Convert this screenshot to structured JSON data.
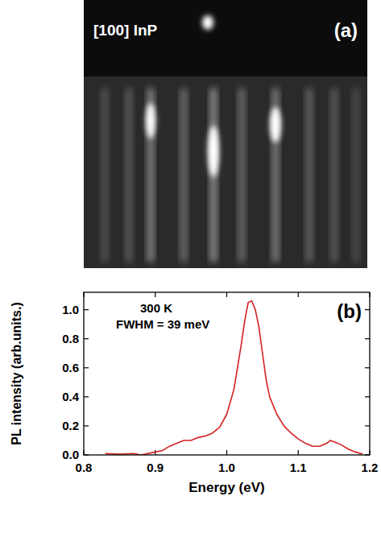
{
  "image_panel": {
    "label": "[100] InP",
    "panel_label": "(a)"
  },
  "chart_data": {
    "type": "line",
    "panel_label": "(b)",
    "annotations": [
      "300 K",
      "FWHM = 39 meV"
    ],
    "x_label": "Energy (eV)",
    "y_label": "PL intensity (arb.units.)",
    "x": [
      0.83,
      0.85,
      0.87,
      0.88,
      0.9,
      0.91,
      0.92,
      0.93,
      0.94,
      0.95,
      0.96,
      0.97,
      0.98,
      0.99,
      1.0,
      1.01,
      1.02,
      1.025,
      1.03,
      1.035,
      1.04,
      1.045,
      1.05,
      1.055,
      1.06,
      1.07,
      1.08,
      1.09,
      1.1,
      1.11,
      1.12,
      1.13,
      1.14,
      1.145,
      1.15,
      1.16,
      1.17,
      1.18,
      1.19
    ],
    "values": [
      0.01,
      0.005,
      0.01,
      0.0,
      0.02,
      0.03,
      0.06,
      0.08,
      0.1,
      0.1,
      0.12,
      0.13,
      0.15,
      0.19,
      0.28,
      0.45,
      0.75,
      0.92,
      1.05,
      1.06,
      1.0,
      0.88,
      0.7,
      0.52,
      0.4,
      0.28,
      0.2,
      0.15,
      0.11,
      0.08,
      0.06,
      0.06,
      0.08,
      0.1,
      0.09,
      0.07,
      0.04,
      0.02,
      0.005
    ],
    "color": "#d42020",
    "xlim": [
      0.8,
      1.2
    ],
    "xticks": [
      0.8,
      0.9,
      {
        "value": 1,
        "label": "1.0"
      },
      1.1,
      1.2
    ],
    "ylim": [
      0,
      1.12
    ],
    "yticks": [
      {
        "value": 0,
        "label": "0.0"
      },
      0.2,
      0.4,
      0.6,
      0.8,
      {
        "value": 1,
        "label": "1.0"
      }
    ],
    "grid": false
  }
}
